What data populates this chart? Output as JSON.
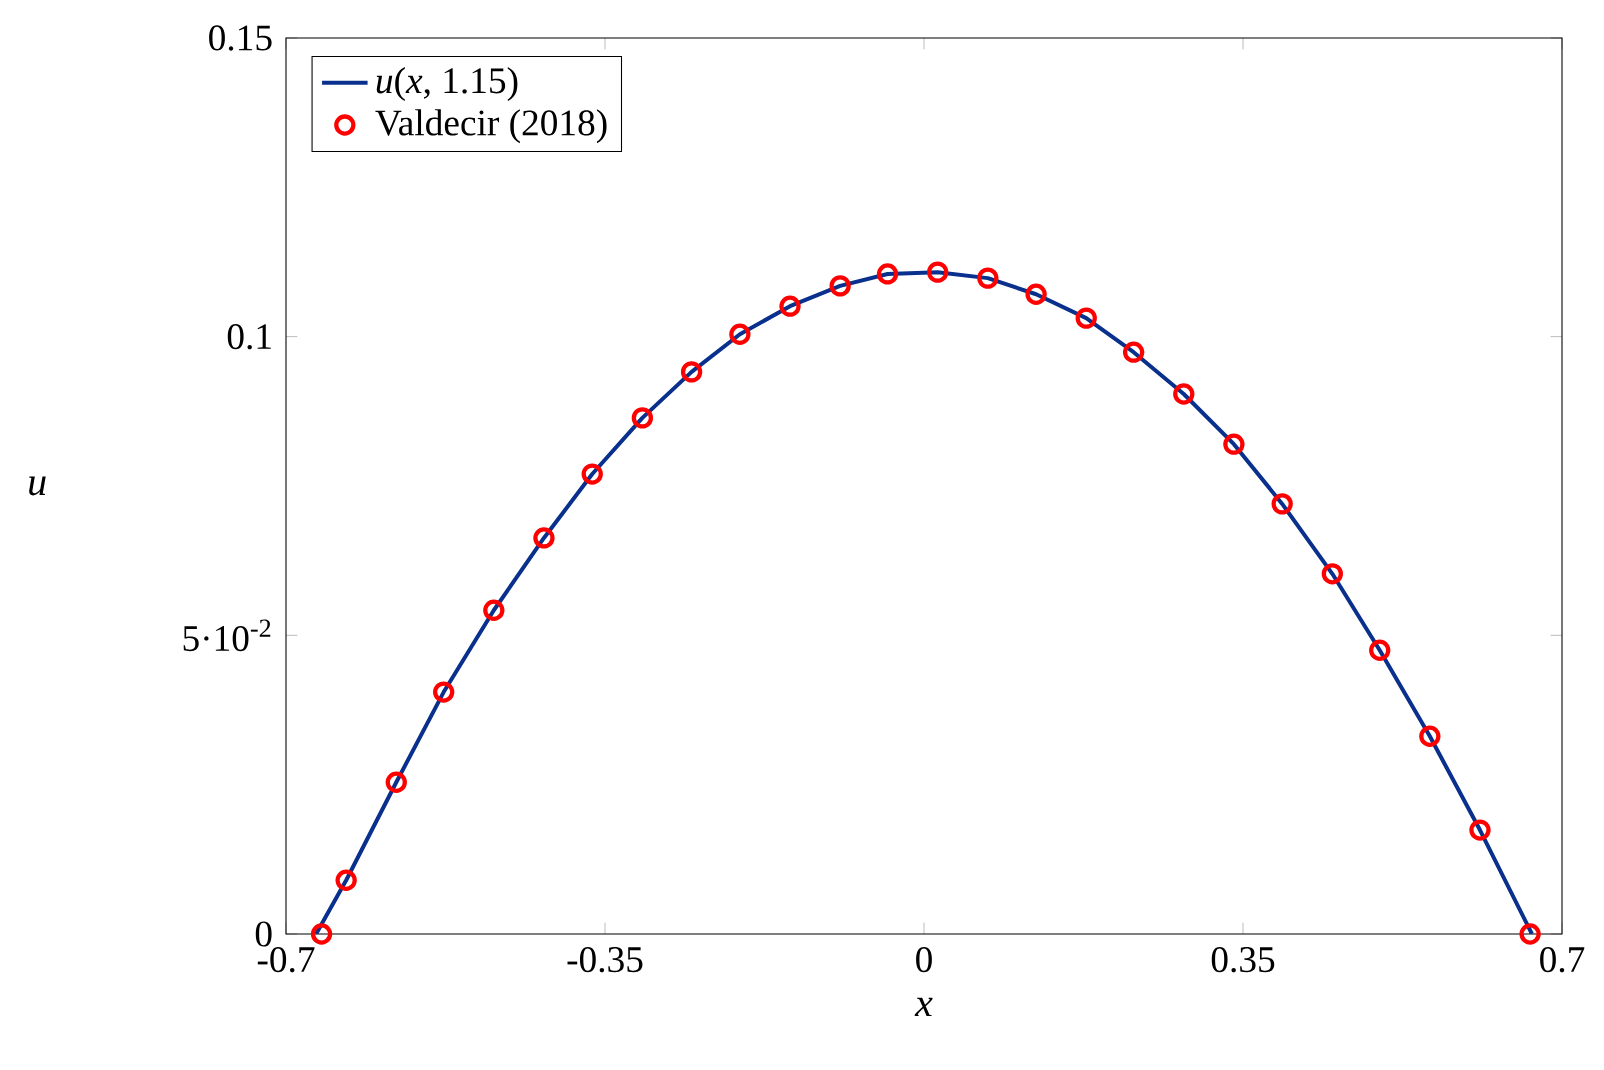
{
  "chart_data": {
    "type": "line",
    "xlabel": "x",
    "ylabel": "u",
    "xlim": [
      -0.7,
      0.7
    ],
    "ylim": [
      0,
      0.15
    ],
    "xticks": [
      -0.7,
      -0.35,
      0,
      0.35,
      0.7
    ],
    "yticks": [
      0,
      {
        "value": 0.05,
        "label": "5·10$^{-2}$"
      },
      0.1,
      0.15
    ],
    "grid": false,
    "legend": "top left",
    "series": [
      {
        "name": "*u*(*x*, 1.15)",
        "color": "#08308c",
        "marker": "none",
        "line_style": "solid",
        "x": [
          -0.667,
          -0.634,
          -0.579,
          -0.527,
          -0.472,
          -0.417,
          -0.364,
          -0.309,
          -0.255,
          -0.202,
          -0.147,
          -0.092,
          -0.04,
          0.015,
          0.07,
          0.123,
          0.178,
          0.23,
          0.285,
          0.34,
          0.393,
          0.448,
          0.5,
          0.555,
          0.61,
          0.667
        ],
        "values": [
          0,
          0.009,
          0.0254,
          0.0405,
          0.0542,
          0.0663,
          0.077,
          0.0864,
          0.0941,
          0.1004,
          0.1051,
          0.1085,
          0.1105,
          0.1108,
          0.1098,
          0.1071,
          0.1031,
          0.0974,
          0.0904,
          0.082,
          0.072,
          0.0603,
          0.0475,
          0.0331,
          0.0174,
          0
        ]
      },
      {
        "name": "Valdecir (2018)",
        "type": "scatter",
        "color": "#ff0000",
        "marker": "circle",
        "x": [
          -0.661,
          -0.634,
          -0.579,
          -0.527,
          -0.472,
          -0.417,
          -0.364,
          -0.309,
          -0.255,
          -0.202,
          -0.147,
          -0.092,
          -0.04,
          0.015,
          0.07,
          0.123,
          0.178,
          0.23,
          0.285,
          0.34,
          0.393,
          0.448,
          0.5,
          0.555,
          0.61,
          0.665
        ],
        "values": [
          0,
          0.009,
          0.0254,
          0.0405,
          0.0542,
          0.0663,
          0.077,
          0.0864,
          0.0941,
          0.1004,
          0.1051,
          0.1085,
          0.1105,
          0.1108,
          0.1098,
          0.1071,
          0.1031,
          0.0974,
          0.0904,
          0.082,
          0.072,
          0.0603,
          0.0475,
          0.0331,
          0.0174,
          0
        ]
      }
    ]
  }
}
